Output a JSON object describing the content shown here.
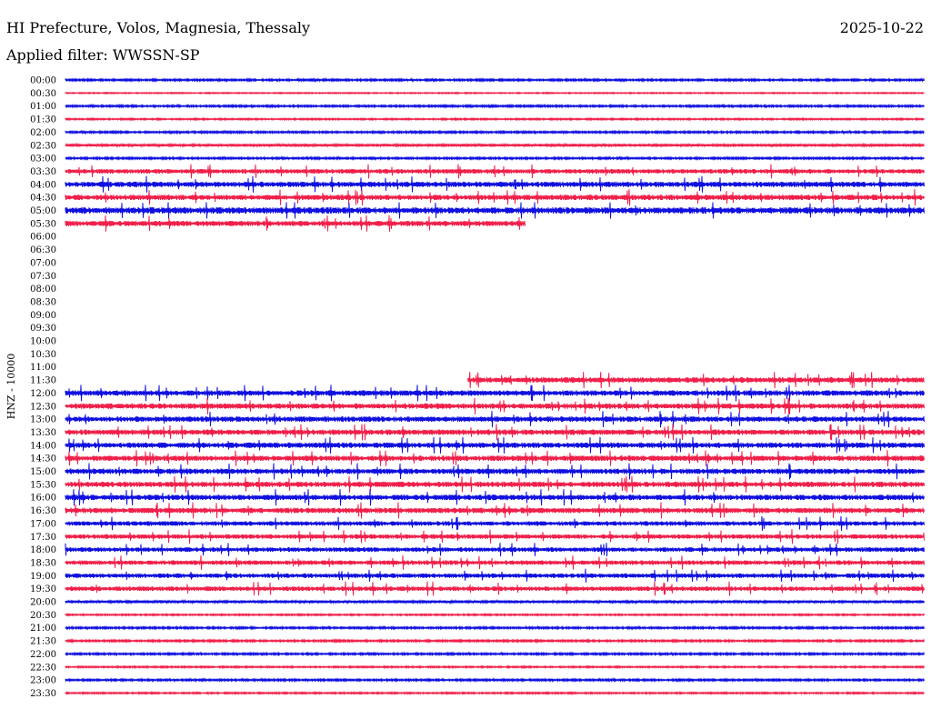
{
  "header": {
    "location": "HI Prefecture, Volos, Magnesia, Thessaly",
    "date": "2025-10-22",
    "filter_label": "Applied filter: WWSSN-SP"
  },
  "chart_data": {
    "type": "line",
    "title": "HI Prefecture, Volos, Magnesia, Thessaly",
    "subtitle": "Applied filter: WWSSN-SP",
    "ylabel": "HNZ - 10000",
    "colors": [
      "#1010e0",
      "#f0204a"
    ],
    "rows": [
      {
        "label": "00:00",
        "level": 1,
        "start": 0,
        "end": 1
      },
      {
        "label": "00:30",
        "level": 0.6,
        "start": 0,
        "end": 1
      },
      {
        "label": "01:00",
        "level": 1,
        "start": 0,
        "end": 1
      },
      {
        "label": "01:30",
        "level": 0.8,
        "start": 0,
        "end": 1
      },
      {
        "label": "02:00",
        "level": 1,
        "start": 0,
        "end": 1
      },
      {
        "label": "02:30",
        "level": 1.5,
        "start": 0,
        "end": 1
      },
      {
        "label": "03:00",
        "level": 1,
        "start": 0,
        "end": 1
      },
      {
        "label": "03:30",
        "level": 2.5,
        "start": 0,
        "end": 1
      },
      {
        "label": "04:00",
        "level": 3,
        "start": 0,
        "end": 1
      },
      {
        "label": "04:30",
        "level": 3,
        "start": 0,
        "end": 1
      },
      {
        "label": "05:00",
        "level": 3.5,
        "start": 0,
        "end": 1
      },
      {
        "label": "05:30",
        "level": 3,
        "start": 0,
        "end": 0.535
      },
      {
        "label": "06:00",
        "level": 0,
        "start": 0,
        "end": 0
      },
      {
        "label": "06:30",
        "level": 0,
        "start": 0,
        "end": 0
      },
      {
        "label": "07:00",
        "level": 0,
        "start": 0,
        "end": 0
      },
      {
        "label": "07:30",
        "level": 0,
        "start": 0,
        "end": 0
      },
      {
        "label": "08:00",
        "level": 0,
        "start": 0,
        "end": 0
      },
      {
        "label": "08:30",
        "level": 0,
        "start": 0,
        "end": 0
      },
      {
        "label": "09:00",
        "level": 0,
        "start": 0,
        "end": 0
      },
      {
        "label": "09:30",
        "level": 0,
        "start": 0,
        "end": 0
      },
      {
        "label": "10:00",
        "level": 0,
        "start": 0,
        "end": 0
      },
      {
        "label": "10:30",
        "level": 0,
        "start": 0,
        "end": 0
      },
      {
        "label": "11:00",
        "level": 0,
        "start": 0,
        "end": 0
      },
      {
        "label": "11:30",
        "level": 3,
        "start": 0.469,
        "end": 1
      },
      {
        "label": "12:00",
        "level": 3,
        "start": 0,
        "end": 1
      },
      {
        "label": "12:30",
        "level": 3,
        "start": 0,
        "end": 1
      },
      {
        "label": "13:00",
        "level": 3,
        "start": 0,
        "end": 1
      },
      {
        "label": "13:30",
        "level": 3,
        "start": 0,
        "end": 1
      },
      {
        "label": "14:00",
        "level": 3,
        "start": 0,
        "end": 1
      },
      {
        "label": "14:30",
        "level": 3,
        "start": 0,
        "end": 1
      },
      {
        "label": "15:00",
        "level": 3,
        "start": 0,
        "end": 1
      },
      {
        "label": "15:30",
        "level": 3,
        "start": 0,
        "end": 1
      },
      {
        "label": "16:00",
        "level": 3,
        "start": 0,
        "end": 1
      },
      {
        "label": "16:30",
        "level": 3,
        "start": 0,
        "end": 1
      },
      {
        "label": "17:00",
        "level": 2.5,
        "start": 0,
        "end": 1
      },
      {
        "label": "17:30",
        "level": 2.5,
        "start": 0,
        "end": 1
      },
      {
        "label": "18:00",
        "level": 2.5,
        "start": 0,
        "end": 1
      },
      {
        "label": "18:30",
        "level": 2.5,
        "start": 0,
        "end": 1
      },
      {
        "label": "19:00",
        "level": 2.5,
        "start": 0,
        "end": 1
      },
      {
        "label": "19:30",
        "level": 2.5,
        "start": 0,
        "end": 1
      },
      {
        "label": "20:00",
        "level": 1.5,
        "start": 0,
        "end": 1
      },
      {
        "label": "20:30",
        "level": 0.8,
        "start": 0,
        "end": 1
      },
      {
        "label": "21:00",
        "level": 1,
        "start": 0,
        "end": 1
      },
      {
        "label": "21:30",
        "level": 1,
        "start": 0,
        "end": 1
      },
      {
        "label": "22:00",
        "level": 1,
        "start": 0,
        "end": 1
      },
      {
        "label": "22:30",
        "level": 0.8,
        "start": 0,
        "end": 1
      },
      {
        "label": "23:00",
        "level": 1,
        "start": 0,
        "end": 1
      },
      {
        "label": "23:30",
        "level": 0.8,
        "start": 0,
        "end": 1
      }
    ]
  }
}
